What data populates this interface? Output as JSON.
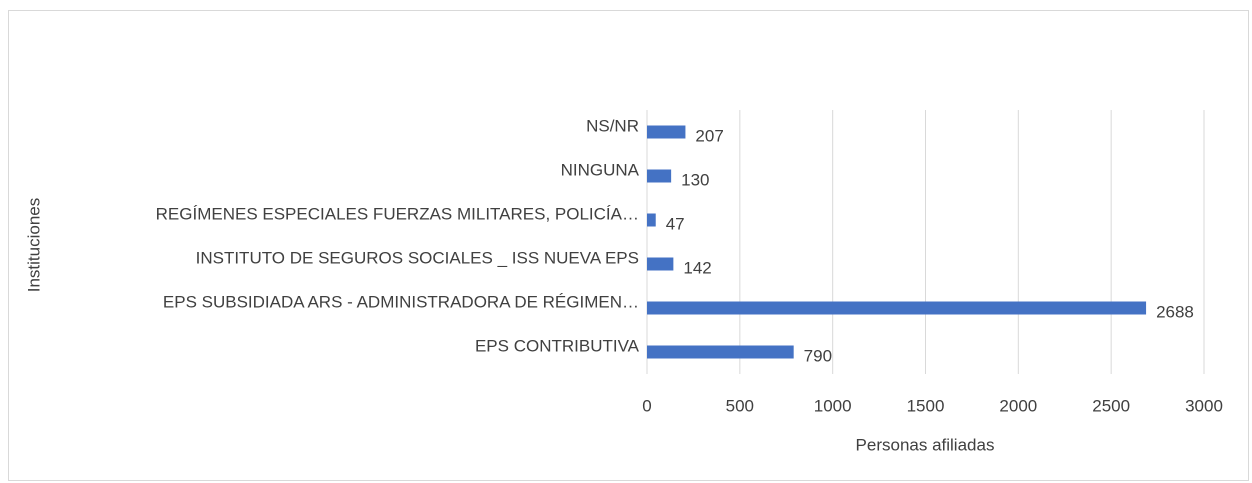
{
  "chart_data": {
    "type": "hbar",
    "x_label": "Personas afiliadas",
    "y_label": "Instituciones",
    "categories": [
      "NS/NR",
      "NINGUNA",
      "REGÍMENES ESPECIALES  FUERZAS MILITARES, POLICÍA…",
      "INSTITUTO DE SEGUROS SOCIALES _ ISS NUEVA EPS",
      "EPS SUBSIDIADA ARS - ADMINISTRADORA DE RÉGIMEN…",
      "EPS CONTRIBUTIVA"
    ],
    "values": [
      207,
      130,
      47,
      142,
      2688,
      790
    ],
    "color": "#4472c4",
    "xlim": [
      0,
      3000
    ],
    "xticks": [
      0,
      500,
      1000,
      1500,
      2000,
      2500,
      3000
    ],
    "grid": true
  }
}
